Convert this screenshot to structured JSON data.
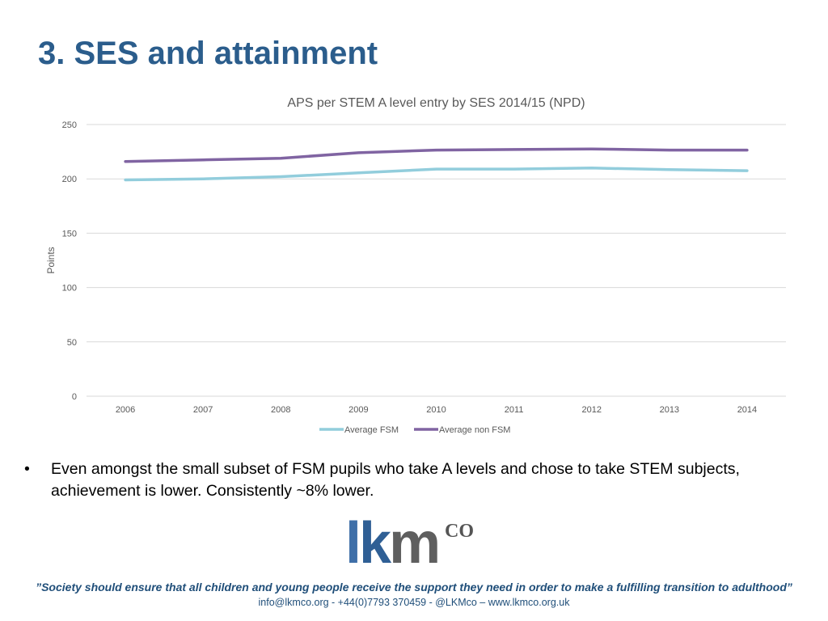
{
  "slide": {
    "title": "3. SES and attainment"
  },
  "chart_data": {
    "type": "line",
    "title": "APS per STEM A level entry by SES 2014/15 (NPD)",
    "xlabel": "",
    "ylabel": "Points",
    "categories": [
      "2006",
      "2007",
      "2008",
      "2009",
      "2010",
      "2011",
      "2012",
      "2013",
      "2014"
    ],
    "ylim": [
      0,
      250
    ],
    "yticks": [
      0,
      50,
      100,
      150,
      200,
      250
    ],
    "grid": true,
    "legend": "bottom",
    "series": [
      {
        "name": "Average FSM",
        "color": "#92cddc",
        "values": [
          199,
          200,
          202,
          205.5,
          209,
          209,
          210,
          208.5,
          207.5
        ]
      },
      {
        "name": "Average non FSM",
        "color": "#8064a2",
        "values": [
          216,
          217.5,
          219,
          224,
          226.5,
          227,
          227.5,
          226.5,
          226.5
        ]
      }
    ]
  },
  "bullets": [
    "Even amongst the small subset of FSM pupils who take A levels and chose to take STEM subjects, achievement is lower. Consistently ~8% lower."
  ],
  "bullet_symbol": "•",
  "logo": {
    "letters": [
      "l",
      "k",
      "m"
    ],
    "superscript": "CO",
    "colors": {
      "l": "#3f6fa8",
      "k": "#2f5f95",
      "m": "#5f5f5f"
    }
  },
  "footer": {
    "quote": "”Society should ensure that all children and young people receive the support they need in order to make a fulfilling transition to adulthood”",
    "contact": "info@lkmco.org - +44(0)7793 370459 - @LKMco – www.lkmco.org.uk"
  }
}
